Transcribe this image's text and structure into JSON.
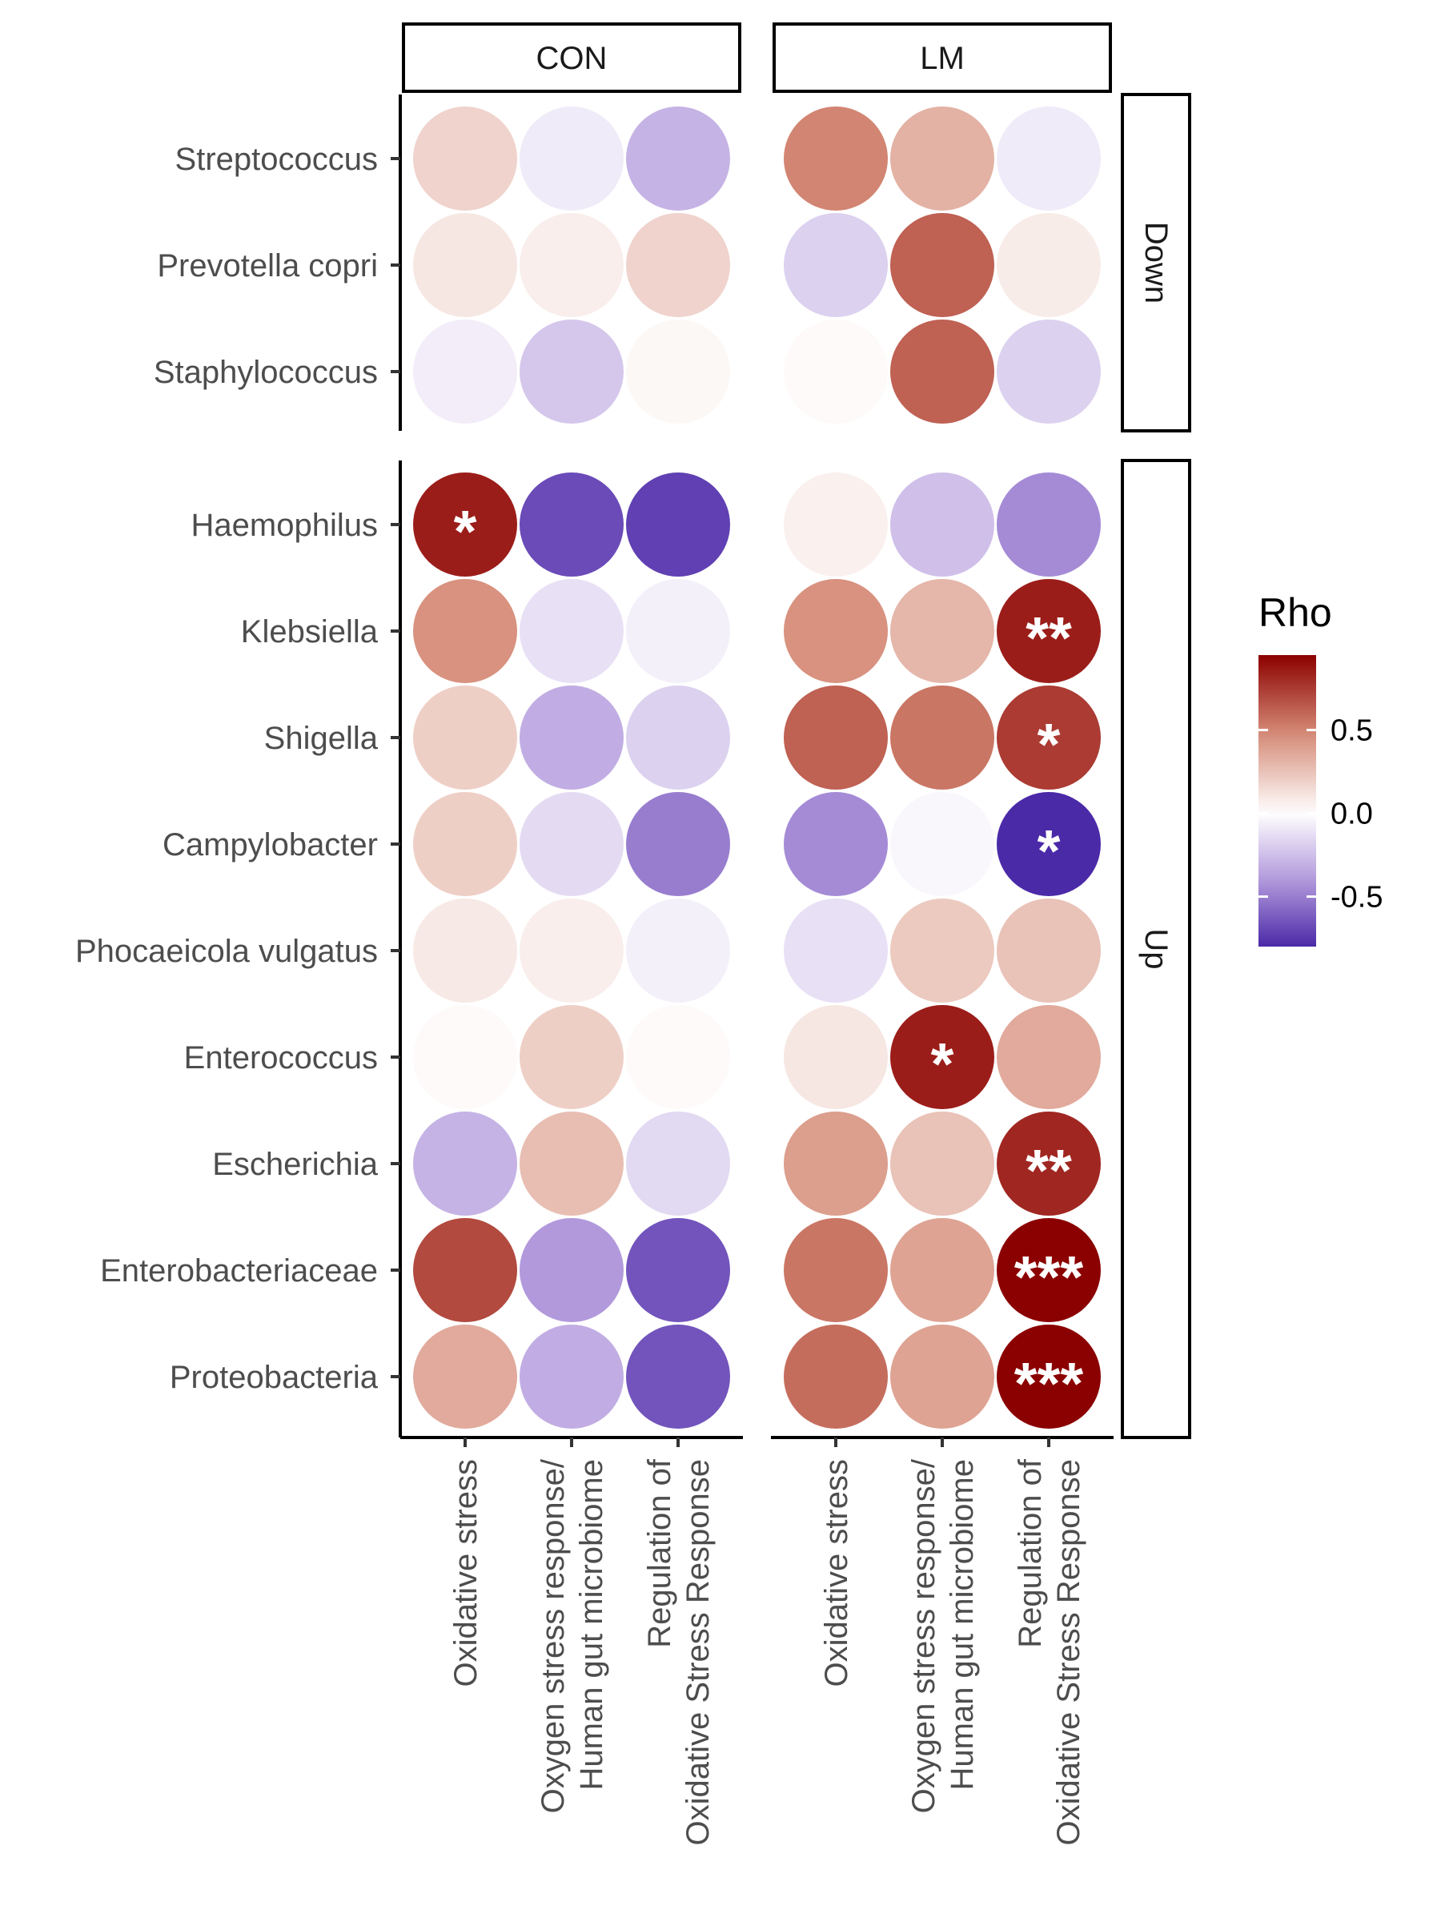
{
  "chart_data": {
    "type": "heatmap",
    "panels": [
      "CON",
      "LM"
    ],
    "row_groups": [
      {
        "name": "Down",
        "rows": [
          "Streptococcus",
          "Prevotella copri",
          "Staphylococcus"
        ]
      },
      {
        "name": "Up",
        "rows": [
          "Haemophilus",
          "Klebsiella",
          "Shigella",
          "Campylobacter",
          "Phocaeicola vulgatus",
          "Enterococcus",
          "Escherichia",
          "Enterobacteriaceae",
          "Proteobacteria"
        ]
      }
    ],
    "columns": [
      [
        "Oxidative stress"
      ],
      [
        "Oxygen stress response/",
        "Human gut microbiome"
      ],
      [
        "Regulation of",
        "Oxidative Stress Response"
      ]
    ],
    "legend": {
      "title": "Rho",
      "ticks": [
        0.5,
        0.0,
        -0.5
      ],
      "tick_labels": [
        "0.5",
        "0.0",
        "-0.5"
      ],
      "range": [
        -0.8,
        0.95
      ],
      "low_color": "#4b2aa8",
      "mid_color": "#ffffff",
      "high_color": "#8b0000"
    },
    "values": {
      "CON": {
        "Streptococcus": [
          0.18,
          -0.08,
          -0.3
        ],
        "Prevotella copri": [
          0.1,
          0.07,
          0.18
        ],
        "Staphylococcus": [
          -0.07,
          -0.22,
          0.03
        ],
        "Haemophilus": [
          0.85,
          -0.68,
          -0.72
        ],
        "Klebsiella": [
          0.45,
          -0.12,
          -0.06
        ],
        "Shigella": [
          0.2,
          -0.32,
          -0.18
        ],
        "Campylobacter": [
          0.2,
          -0.14,
          -0.5
        ],
        "Phocaeicola vulgatus": [
          0.09,
          0.07,
          -0.06
        ],
        "Enterococcus": [
          0.02,
          0.2,
          0.02
        ],
        "Escherichia": [
          -0.3,
          0.27,
          -0.15
        ],
        "Enterobacteriaceae": [
          0.7,
          -0.4,
          -0.65
        ],
        "Proteobacteria": [
          0.35,
          -0.32,
          -0.65
        ]
      },
      "LM": {
        "Streptococcus": [
          0.5,
          0.32,
          -0.08
        ],
        "Prevotella copri": [
          -0.18,
          0.62,
          0.08
        ],
        "Staphylococcus": [
          0.02,
          0.62,
          -0.18
        ],
        "Haemophilus": [
          0.06,
          -0.25,
          -0.45
        ],
        "Klebsiella": [
          0.45,
          0.3,
          0.85
        ],
        "Shigella": [
          0.62,
          0.55,
          0.75
        ],
        "Campylobacter": [
          -0.45,
          -0.03,
          -0.8
        ],
        "Phocaeicola vulgatus": [
          -0.12,
          0.22,
          0.25
        ],
        "Enterococcus": [
          0.1,
          0.85,
          0.35
        ],
        "Escherichia": [
          0.4,
          0.25,
          0.82
        ],
        "Enterobacteriaceae": [
          0.55,
          0.38,
          0.95
        ],
        "Proteobacteria": [
          0.58,
          0.38,
          0.95
        ]
      }
    },
    "significance": {
      "CON": {
        "Haemophilus": [
          "*",
          "",
          ""
        ]
      },
      "LM": {
        "Klebsiella": [
          "",
          "",
          "**"
        ],
        "Shigella": [
          "",
          "",
          "*"
        ],
        "Campylobacter": [
          "",
          "",
          "*"
        ],
        "Enterococcus": [
          "",
          "*",
          ""
        ],
        "Escherichia": [
          "",
          "",
          "**"
        ],
        "Enterobacteriaceae": [
          "",
          "",
          "***"
        ],
        "Proteobacteria": [
          "",
          "",
          "***"
        ]
      }
    }
  }
}
